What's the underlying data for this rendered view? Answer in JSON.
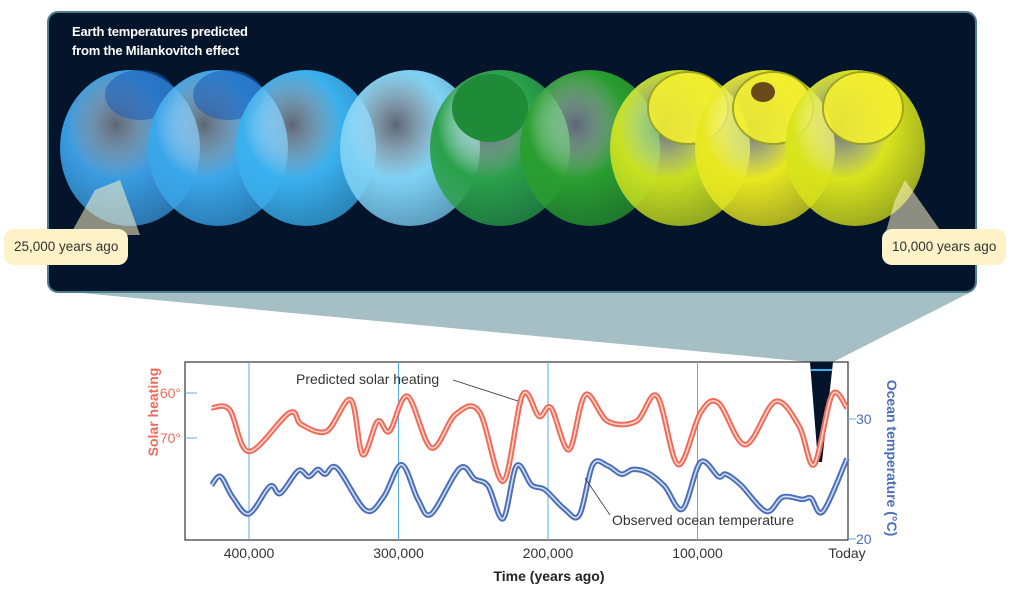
{
  "panel": {
    "title_line1": "Earth temperatures predicted",
    "title_line2": "from the Milankovitch effect",
    "label_left": "25,000 years ago",
    "label_right": "10,000 years ago",
    "globe_colors": [
      "#3a9be0",
      "#3aa6ea",
      "#3ab0ee",
      "#7fd2f5",
      "#2aa04a",
      "#2a9e30",
      "#c8e020",
      "#e8e820",
      "#d8e41c"
    ],
    "background": "#03142b"
  },
  "chart_data": {
    "type": "line",
    "xlabel": "Time (years ago)",
    "ylabel_left": "Solar heating",
    "ylabel_right": "Ocean temperature (°C)",
    "x_ticks": [
      {
        "value": 400000,
        "label": "400,000"
      },
      {
        "value": 300000,
        "label": "300,000"
      },
      {
        "value": 200000,
        "label": "200,000"
      },
      {
        "value": 100000,
        "label": "100,000"
      },
      {
        "value": 0,
        "label": "Today"
      }
    ],
    "y_left_ticks": [
      {
        "value": 60,
        "label": "60°"
      },
      {
        "value": 70,
        "label": "70°"
      }
    ],
    "y_right_ticks": [
      {
        "value": 30,
        "label": "30"
      },
      {
        "value": 20,
        "label": "20"
      }
    ],
    "y_left_inverted": true,
    "grid": "vertical",
    "series": [
      {
        "name": "Predicted solar heating",
        "axis": "left",
        "color": "#f06a5a",
        "x": [
          425000,
          413000,
          400000,
          373000,
          365000,
          348000,
          332000,
          324000,
          314000,
          306000,
          294000,
          278000,
          262000,
          246000,
          230000,
          217000,
          206000,
          198000,
          186000,
          175000,
          160000,
          141000,
          127000,
          113000,
          98000,
          86000,
          68000,
          48000,
          32000,
          22000,
          10000,
          0
        ],
        "y": [
          63.3,
          63.7,
          73,
          64.4,
          67,
          68.5,
          61.5,
          73.7,
          66.3,
          68.5,
          60.7,
          72.2,
          64.8,
          64.1,
          79.6,
          60.4,
          65.2,
          63.3,
          72.6,
          60.4,
          66.3,
          66.3,
          60.7,
          75.9,
          64.4,
          62.2,
          71.5,
          61.9,
          67.4,
          75.9,
          60.4,
          63.3
        ]
      },
      {
        "name": "Observed ocean temperature",
        "axis": "right",
        "color": "#4a6fb8",
        "x": [
          425000,
          419000,
          411000,
          400000,
          386000,
          379000,
          367000,
          360000,
          354000,
          349000,
          341000,
          322000,
          310000,
          298000,
          287000,
          278000,
          259000,
          249000,
          240000,
          230000,
          221000,
          211000,
          202000,
          189000,
          179000,
          170000,
          160000,
          151000,
          143000,
          133000,
          122000,
          110000,
          98000,
          86000,
          81000,
          71000,
          54000,
          43000,
          30000,
          24000,
          16000,
          0
        ],
        "y": [
          24.5,
          25.2,
          23.5,
          22.1,
          24.4,
          23.8,
          25.7,
          25.2,
          25.8,
          25.4,
          25.9,
          22.4,
          23.5,
          26.2,
          23.3,
          22.1,
          25.9,
          25.0,
          24.4,
          21.7,
          26.1,
          24.5,
          24.1,
          22.5,
          22.0,
          26.2,
          26.1,
          25.4,
          25.8,
          25.5,
          24.4,
          22.5,
          26.4,
          25.2,
          25.4,
          24.5,
          22.3,
          23.5,
          23.3,
          23.4,
          22.3,
          26.7
        ]
      }
    ]
  }
}
